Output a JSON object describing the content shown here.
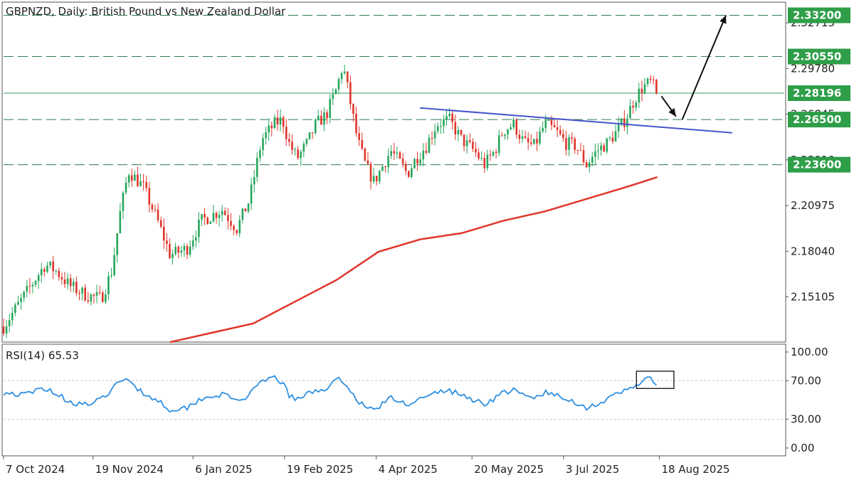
{
  "chart_title": "GBPNZD, Daily:  British Pound vs New Zealand Dollar",
  "rsi_label": "RSI(14) 65.53",
  "colors": {
    "bull": "#26a65b",
    "bear": "#e0342a",
    "ma": "#e0342a",
    "trendline": "#4455cc",
    "rsi": "#2f8fe0",
    "badge": "#2e9e48",
    "grid": "#cccccc",
    "frame": "#555555"
  },
  "chart_data": [
    {
      "type": "candlestick",
      "symbol": "GBPNZD",
      "timeframe": "Daily",
      "title": "GBPNZD, Daily:  British Pound vs New Zealand Dollar",
      "y_ticks": [
        "2.32715",
        "2.29780",
        "2.26845",
        "2.23910",
        "2.20975",
        "2.18040",
        "2.15105"
      ],
      "y_tick_values": [
        2.32715,
        2.2978,
        2.26845,
        2.2391,
        2.20975,
        2.1804,
        2.15105
      ],
      "y_range": [
        2.1225,
        2.34
      ],
      "x_ticks": [
        "7 Oct 2024",
        "19 Nov 2024",
        "6 Jan 2025",
        "19 Feb 2025",
        "4 Apr 2025",
        "20 May 2025",
        "3 Jul 2025",
        "18 Aug 2025"
      ],
      "x_tick_day": [
        0,
        43,
        91,
        135,
        179,
        225,
        269,
        315
      ],
      "x_range_days": [
        0,
        375
      ],
      "last_candle_day": 314,
      "levels": [
        {
          "value": 2.332,
          "label": "2.33200",
          "style": "dashed"
        },
        {
          "value": 2.3055,
          "label": "2.30550",
          "style": "dashed"
        },
        {
          "value": 2.28196,
          "label": "2.28196",
          "style": "solid"
        },
        {
          "value": 2.265,
          "label": "2.26500",
          "style": "dashed"
        },
        {
          "value": 2.236,
          "label": "2.23600",
          "style": "dashed"
        }
      ],
      "price_path": [
        [
          0,
          2.132
        ],
        [
          10,
          2.152
        ],
        [
          20,
          2.172
        ],
        [
          25,
          2.168
        ],
        [
          32,
          2.158
        ],
        [
          40,
          2.152
        ],
        [
          47,
          2.15
        ],
        [
          52,
          2.168
        ],
        [
          56,
          2.205
        ],
        [
          60,
          2.232
        ],
        [
          67,
          2.222
        ],
        [
          74,
          2.2
        ],
        [
          80,
          2.178
        ],
        [
          88,
          2.182
        ],
        [
          95,
          2.2
        ],
        [
          105,
          2.207
        ],
        [
          112,
          2.195
        ],
        [
          118,
          2.213
        ],
        [
          124,
          2.252
        ],
        [
          130,
          2.262
        ],
        [
          134,
          2.265
        ],
        [
          137,
          2.25
        ],
        [
          141,
          2.24
        ],
        [
          146,
          2.25
        ],
        [
          150,
          2.262
        ],
        [
          155,
          2.268
        ],
        [
          160,
          2.285
        ],
        [
          163,
          2.3
        ],
        [
          166,
          2.28
        ],
        [
          170,
          2.252
        ],
        [
          174,
          2.235
        ],
        [
          178,
          2.225
        ],
        [
          182,
          2.235
        ],
        [
          186,
          2.245
        ],
        [
          190,
          2.238
        ],
        [
          194,
          2.23
        ],
        [
          198,
          2.24
        ],
        [
          203,
          2.248
        ],
        [
          208,
          2.262
        ],
        [
          214,
          2.265
        ],
        [
          220,
          2.252
        ],
        [
          226,
          2.245
        ],
        [
          231,
          2.236
        ],
        [
          236,
          2.245
        ],
        [
          240,
          2.258
        ],
        [
          245,
          2.262
        ],
        [
          250,
          2.25
        ],
        [
          255,
          2.248
        ],
        [
          260,
          2.262
        ],
        [
          265,
          2.258
        ],
        [
          270,
          2.25
        ],
        [
          275,
          2.248
        ],
        [
          280,
          2.236
        ],
        [
          285,
          2.245
        ],
        [
          290,
          2.25
        ],
        [
          295,
          2.258
        ],
        [
          299,
          2.266
        ],
        [
          303,
          2.278
        ],
        [
          307,
          2.286
        ],
        [
          311,
          2.289
        ],
        [
          314,
          2.282
        ]
      ],
      "trendline": {
        "start": [
          200,
          2.2725
        ],
        "end": [
          350,
          2.2565
        ]
      },
      "moving_average": [
        [
          80,
          2.122
        ],
        [
          100,
          2.128
        ],
        [
          120,
          2.134
        ],
        [
          140,
          2.148
        ],
        [
          160,
          2.162
        ],
        [
          180,
          2.18
        ],
        [
          200,
          2.188
        ],
        [
          220,
          2.192
        ],
        [
          240,
          2.2
        ],
        [
          260,
          2.206
        ],
        [
          280,
          2.214
        ],
        [
          300,
          2.222
        ],
        [
          314,
          2.228
        ]
      ],
      "projection_arrows": [
        {
          "from": [
            316,
            2.28
          ],
          "to": [
            323,
            2.267
          ]
        },
        {
          "from": [
            326,
            2.265
          ],
          "to": [
            347,
            2.332
          ]
        }
      ]
    },
    {
      "type": "line",
      "name": "RSI(14)",
      "label": "RSI(14) 65.53",
      "last_value": 65.53,
      "y_ticks": [
        "100.00",
        "70.00",
        "30.00",
        "0.00"
      ],
      "y_tick_values": [
        100,
        70,
        30,
        0
      ],
      "y_range": [
        0,
        100
      ],
      "rsi_path": [
        [
          0,
          58
        ],
        [
          10,
          55
        ],
        [
          20,
          63
        ],
        [
          25,
          57
        ],
        [
          32,
          48
        ],
        [
          40,
          45
        ],
        [
          47,
          50
        ],
        [
          52,
          62
        ],
        [
          56,
          68
        ],
        [
          60,
          72
        ],
        [
          67,
          57
        ],
        [
          74,
          50
        ],
        [
          80,
          40
        ],
        [
          88,
          42
        ],
        [
          95,
          52
        ],
        [
          105,
          56
        ],
        [
          112,
          49
        ],
        [
          118,
          55
        ],
        [
          124,
          68
        ],
        [
          130,
          74
        ],
        [
          134,
          68
        ],
        [
          137,
          55
        ],
        [
          141,
          50
        ],
        [
          146,
          56
        ],
        [
          150,
          60
        ],
        [
          155,
          62
        ],
        [
          160,
          70
        ],
        [
          163,
          72
        ],
        [
          166,
          60
        ],
        [
          170,
          50
        ],
        [
          174,
          42
        ],
        [
          178,
          40
        ],
        [
          182,
          46
        ],
        [
          186,
          52
        ],
        [
          190,
          48
        ],
        [
          194,
          46
        ],
        [
          198,
          50
        ],
        [
          203,
          52
        ],
        [
          208,
          58
        ],
        [
          214,
          60
        ],
        [
          220,
          55
        ],
        [
          226,
          50
        ],
        [
          231,
          46
        ],
        [
          236,
          52
        ],
        [
          240,
          58
        ],
        [
          245,
          60
        ],
        [
          250,
          54
        ],
        [
          255,
          52
        ],
        [
          260,
          58
        ],
        [
          265,
          55
        ],
        [
          270,
          50
        ],
        [
          275,
          48
        ],
        [
          280,
          42
        ],
        [
          285,
          46
        ],
        [
          290,
          50
        ],
        [
          295,
          56
        ],
        [
          299,
          60
        ],
        [
          303,
          65
        ],
        [
          307,
          70
        ],
        [
          311,
          72
        ],
        [
          314,
          66
        ]
      ]
    }
  ]
}
